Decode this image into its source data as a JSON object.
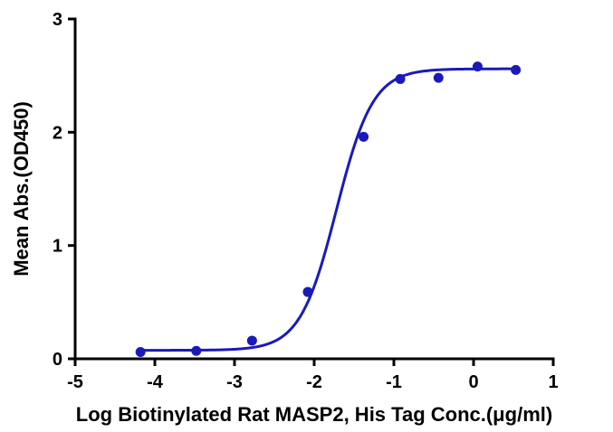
{
  "chart_data": {
    "type": "scatter",
    "title": "",
    "xlabel": "Log Biotinylated Rat MASP2, His Tag Conc.(μg/ml)",
    "ylabel": "Mean Abs.(OD450)",
    "xlim": [
      -5,
      1
    ],
    "ylim": [
      0,
      3
    ],
    "x_ticks": [
      "-5",
      "-4",
      "-3",
      "-2",
      "-1",
      "0",
      "1"
    ],
    "y_ticks": [
      "0",
      "1",
      "2",
      "3"
    ],
    "grid": false,
    "legend": "none",
    "color": "#1a1aba",
    "series": [
      {
        "x": [
          -4.18,
          -3.48,
          -2.78,
          -2.08,
          -1.38,
          -0.92,
          -0.44,
          0.05,
          0.53
        ],
        "y": [
          0.06,
          0.07,
          0.16,
          0.59,
          1.96,
          2.47,
          2.48,
          2.58,
          2.55
        ]
      }
    ],
    "fit": {
      "type": "4PL",
      "bottom": 0.075,
      "top": 2.56,
      "log_ec50": -1.72,
      "hill": 1.9
    }
  }
}
